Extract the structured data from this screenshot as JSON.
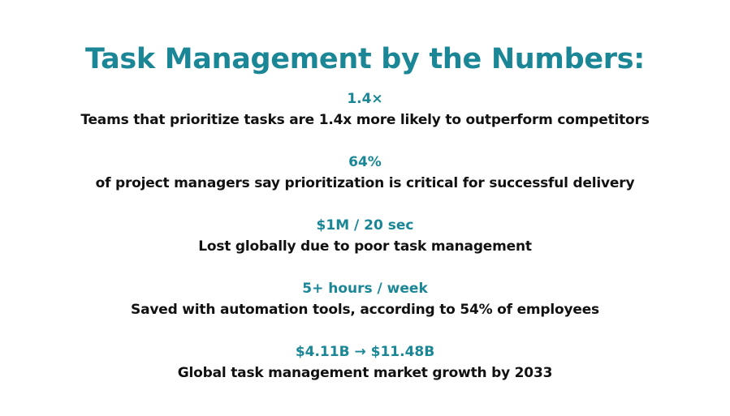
{
  "title": "Task Management by the Numbers:",
  "colors": {
    "accent": "#1b8796",
    "text": "#111111",
    "background": "#ffffff"
  },
  "stats": [
    {
      "value": "1.4×",
      "description": "Teams that prioritize tasks are 1.4x more likely to outperform competitors"
    },
    {
      "value": "64%",
      "description": "of project managers say prioritization is critical for successful delivery"
    },
    {
      "value": "$1M / 20 sec",
      "description": "Lost globally due to poor task management"
    },
    {
      "value": "5+ hours / week",
      "description": "Saved with automation tools, according to 54% of employees"
    },
    {
      "value": "$4.11B → $11.48B",
      "description": "Global task management market growth by 2033"
    }
  ]
}
